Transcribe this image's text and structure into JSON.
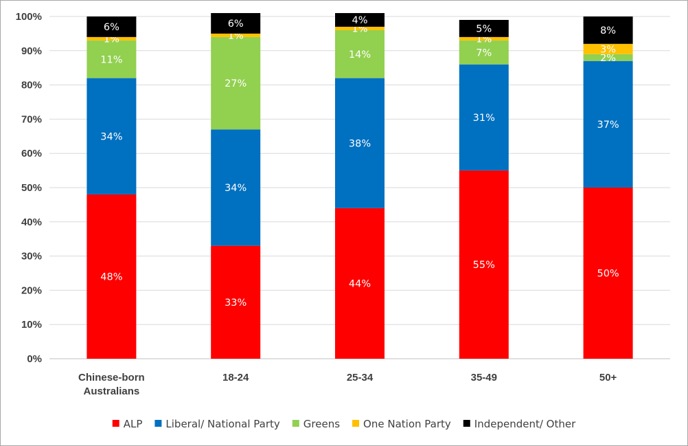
{
  "chart_data": {
    "type": "bar",
    "stacked": true,
    "categories": [
      "Chinese-born Australians",
      "18-24",
      "25-34",
      "35-49",
      "50+"
    ],
    "category_lines": [
      [
        "Chinese-born",
        "Australians"
      ],
      [
        "18-24"
      ],
      [
        "25-34"
      ],
      [
        "35-49"
      ],
      [
        "50+"
      ]
    ],
    "ylim": [
      0,
      100
    ],
    "ytick_labels": [
      "0%",
      "10%",
      "20%",
      "30%",
      "40%",
      "50%",
      "60%",
      "70%",
      "80%",
      "90%",
      "100%"
    ],
    "grid": true,
    "legend_position": "bottom",
    "series": [
      {
        "name": "ALP",
        "color": "#ff0000",
        "values": [
          48,
          33,
          44,
          55,
          50
        ],
        "labels": [
          "48%",
          "33%",
          "44%",
          "55%",
          "50%"
        ]
      },
      {
        "name": "Liberal/ National Party",
        "color": "#0070c0",
        "values": [
          34,
          34,
          38,
          31,
          37
        ],
        "labels": [
          "34%",
          "34%",
          "38%",
          "31%",
          "37%"
        ]
      },
      {
        "name": "Greens",
        "color": "#92d050",
        "values": [
          11,
          27,
          14,
          7,
          2
        ],
        "labels": [
          "11%",
          "27%",
          "14%",
          "7%",
          "2%"
        ]
      },
      {
        "name": "One Nation Party",
        "color": "#ffc000",
        "values": [
          1,
          1,
          1,
          1,
          3
        ],
        "labels": [
          "1%",
          "1%",
          "1%",
          "1%",
          "3%"
        ]
      },
      {
        "name": "Independent/ Other",
        "color": "#000000",
        "values": [
          6,
          6,
          4,
          5,
          8
        ],
        "labels": [
          "6%",
          "6%",
          "4%",
          "5%",
          "8%"
        ]
      }
    ]
  }
}
